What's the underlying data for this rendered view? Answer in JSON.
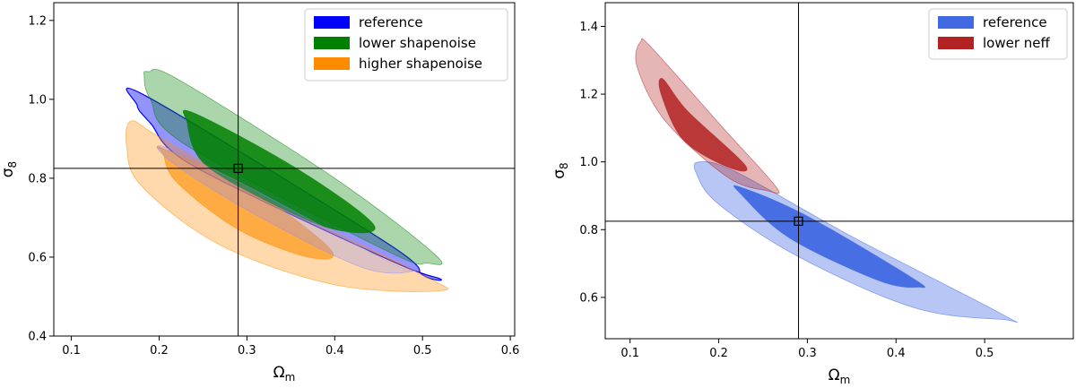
{
  "chart_data": [
    {
      "type": "contour",
      "title": "",
      "xlabel": "Ω",
      "xlabel_sub": "m",
      "ylabel": "σ",
      "ylabel_sub": "8",
      "xlim": [
        0.08,
        0.605
      ],
      "ylim": [
        0.4,
        1.245
      ],
      "xticks": [
        0.1,
        0.2,
        0.3,
        0.4,
        0.5,
        0.6
      ],
      "xtick_labels": [
        "0.1",
        "0.2",
        "0.3",
        "0.4",
        "0.5",
        "0.6"
      ],
      "yticks": [
        0.4,
        0.6,
        0.8,
        1.0,
        1.2
      ],
      "ytick_labels": [
        "0.4",
        "0.6",
        "0.8",
        "1.0",
        "1.2"
      ],
      "fiducial": {
        "omega_m": 0.29,
        "sigma_8": 0.825
      },
      "legend_position": "top-right",
      "series": [
        {
          "name": "reference",
          "color": "#0000ff",
          "style": "outline",
          "contours": [
            {
              "level": "95%",
              "points": [
                [
                  0.188,
                  1.005
                ],
                [
                  0.46,
                  0.635
                ],
                [
                  0.5,
                  0.555
                ],
                [
                  0.52,
                  0.545
                ],
                [
                  0.46,
                  0.595
                ],
                [
                  0.24,
                  0.83
                ],
                [
                  0.19,
                  0.94
                ],
                [
                  0.175,
                  0.985
                ]
              ]
            }
          ]
        },
        {
          "name": "lower shapenoise",
          "color": "#008000",
          "style": "filled",
          "contours": [
            {
              "level": "95%",
              "points": [
                [
                  0.188,
                  1.07
                ],
                [
                  0.222,
                  1.05
                ],
                [
                  0.4,
                  0.8
                ],
                [
                  0.515,
                  0.605
                ],
                [
                  0.505,
                  0.585
                ],
                [
                  0.46,
                  0.615
                ],
                [
                  0.23,
                  0.885
                ],
                [
                  0.19,
                  1.0
                ],
                [
                  0.183,
                  1.06
                ]
              ]
            },
            {
              "level": "68%",
              "points": [
                [
                  0.24,
                  0.965
                ],
                [
                  0.36,
                  0.82
                ],
                [
                  0.445,
                  0.68
                ],
                [
                  0.4,
                  0.67
                ],
                [
                  0.32,
                  0.745
                ],
                [
                  0.25,
                  0.84
                ],
                [
                  0.232,
                  0.94
                ]
              ]
            }
          ]
        },
        {
          "name": "higher shapenoise",
          "color": "#ff8c00",
          "style": "filled",
          "contours": [
            {
              "level": "95%",
              "points": [
                [
                  0.168,
                  0.945
                ],
                [
                  0.2,
                  0.905
                ],
                [
                  0.33,
                  0.74
                ],
                [
                  0.5,
                  0.555
                ],
                [
                  0.52,
                  0.515
                ],
                [
                  0.4,
                  0.53
                ],
                [
                  0.27,
                  0.63
                ],
                [
                  0.18,
                  0.78
                ],
                [
                  0.163,
                  0.88
                ]
              ]
            },
            {
              "level": "68%",
              "points": [
                [
                  0.205,
                  0.875
                ],
                [
                  0.3,
                  0.78
                ],
                [
                  0.395,
                  0.62
                ],
                [
                  0.37,
                  0.6
                ],
                [
                  0.29,
                  0.67
                ],
                [
                  0.22,
                  0.79
                ],
                [
                  0.205,
                  0.86
                ]
              ]
            }
          ]
        },
        {
          "name": "reference",
          "color": "#8e8eff",
          "style": "filled-overlay",
          "contours": [
            {
              "level": "68%",
              "points": [
                [
                  0.205,
                  0.88
                ],
                [
                  0.3,
                  0.78
                ],
                [
                  0.46,
                  0.59
                ],
                [
                  0.49,
                  0.565
                ],
                [
                  0.43,
                  0.575
                ],
                [
                  0.3,
                  0.72
                ],
                [
                  0.215,
                  0.84
                ]
              ]
            }
          ]
        }
      ],
      "legend": [
        {
          "label": "reference",
          "color": "#0000ff"
        },
        {
          "label": "lower shapenoise",
          "color": "#008000"
        },
        {
          "label": "higher shapenoise",
          "color": "#ff8c00"
        }
      ]
    },
    {
      "type": "contour",
      "title": "",
      "xlabel": "Ω",
      "xlabel_sub": "m",
      "ylabel": "σ",
      "ylabel_sub": "8",
      "xlim": [
        0.072,
        0.6
      ],
      "ylim": [
        0.478,
        1.47
      ],
      "xticks": [
        0.1,
        0.2,
        0.3,
        0.4,
        0.5
      ],
      "xtick_labels": [
        "0.1",
        "0.2",
        "0.3",
        "0.4",
        "0.5"
      ],
      "yticks": [
        0.6,
        0.8,
        1.0,
        1.2,
        1.4
      ],
      "ytick_labels": [
        "0.6",
        "0.8",
        "1.0",
        "1.2",
        "1.4"
      ],
      "fiducial": {
        "omega_m": 0.29,
        "sigma_8": 0.825
      },
      "legend_position": "top-right",
      "series": [
        {
          "name": "reference",
          "color": "#4169e1",
          "style": "filled",
          "contours": [
            {
              "level": "95%",
              "points": [
                [
                  0.178,
                  1.0
                ],
                [
                  0.22,
                  0.97
                ],
                [
                  0.35,
                  0.78
                ],
                [
                  0.52,
                  0.55
                ],
                [
                  0.52,
                  0.535
                ],
                [
                  0.42,
                  0.57
                ],
                [
                  0.29,
                  0.72
                ],
                [
                  0.2,
                  0.875
                ],
                [
                  0.175,
                  0.965
                ]
              ]
            },
            {
              "level": "68%",
              "points": [
                [
                  0.225,
                  0.925
                ],
                [
                  0.3,
                  0.84
                ],
                [
                  0.42,
                  0.655
                ],
                [
                  0.425,
                  0.63
                ],
                [
                  0.38,
                  0.65
                ],
                [
                  0.28,
                  0.775
                ],
                [
                  0.225,
                  0.905
                ]
              ]
            }
          ]
        },
        {
          "name": "lower neff",
          "color": "#b22222",
          "style": "filled",
          "contours": [
            {
              "level": "95%",
              "points": [
                [
                  0.112,
                  1.355
                ],
                [
                  0.125,
                  1.335
                ],
                [
                  0.205,
                  1.1
                ],
                [
                  0.265,
                  0.925
                ],
                [
                  0.255,
                  0.915
                ],
                [
                  0.21,
                  0.955
                ],
                [
                  0.14,
                  1.12
                ],
                [
                  0.108,
                  1.28
                ]
              ]
            },
            {
              "level": "68%",
              "points": [
                [
                  0.137,
                  1.245
                ],
                [
                  0.165,
                  1.15
                ],
                [
                  0.23,
                  0.99
                ],
                [
                  0.21,
                  0.985
                ],
                [
                  0.16,
                  1.065
                ],
                [
                  0.135,
                  1.2
                ]
              ]
            }
          ]
        }
      ],
      "legend": [
        {
          "label": "reference",
          "color": "#4169e1"
        },
        {
          "label": "lower neff",
          "color": "#b22222"
        }
      ]
    }
  ]
}
